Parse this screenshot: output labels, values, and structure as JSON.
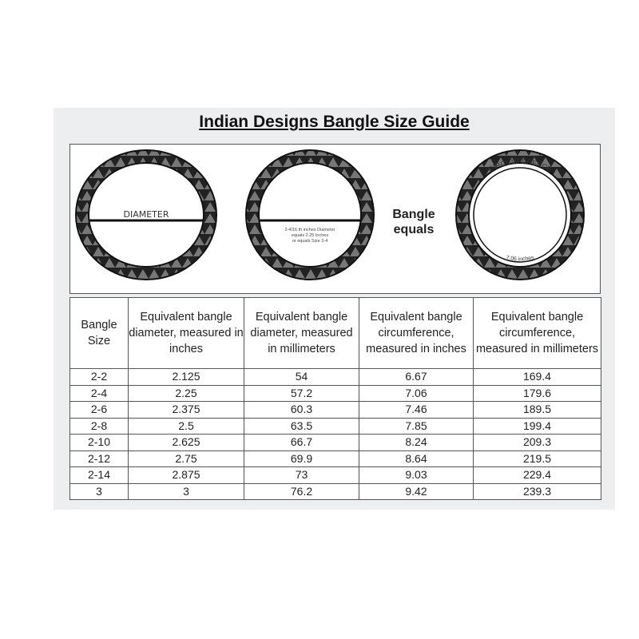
{
  "title": "Indian Designs Bangle Size Guide",
  "illustration": {
    "diameter_label": "DIAMETER",
    "example_note": [
      "2-4/16 th inches Diameter",
      "equals 2.25 Inches",
      "or equals Size 2-4"
    ],
    "equals_label": [
      "Bangle",
      "equals"
    ],
    "circumference_label": "CIRCUMFERENCE",
    "circumference_value": "7.06 inches"
  },
  "table": {
    "headers": [
      "Bangle Size",
      "Equivalent bangle diameter, measured in inches",
      "Equivalent bangle diameter, measured in millimeters",
      "Equivalent bangle circumference, measured in inches",
      "Equivalent bangle circumference, measured in millimeters"
    ],
    "rows": [
      [
        "2-2",
        "2.125",
        "54",
        "6.67",
        "169.4"
      ],
      [
        "2-4",
        "2.25",
        "57.2",
        "7.06",
        "179.6"
      ],
      [
        "2-6",
        "2.375",
        "60.3",
        "7.46",
        "189.5"
      ],
      [
        "2-8",
        "2.5",
        "63.5",
        "7.85",
        "199.4"
      ],
      [
        "2-10",
        "2.625",
        "66.7",
        "8.24",
        "209.3"
      ],
      [
        "2-12",
        "2.75",
        "69.9",
        "8.64",
        "219.5"
      ],
      [
        "2-14",
        "2.875",
        "73",
        "9.03",
        "229.4"
      ],
      [
        "3",
        "3",
        "76.2",
        "9.42",
        "239.3"
      ]
    ]
  }
}
